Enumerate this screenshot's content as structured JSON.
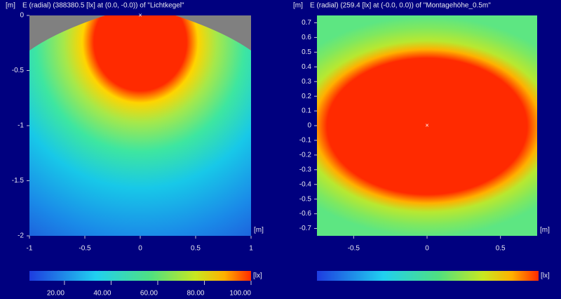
{
  "chart_data": [
    {
      "type": "heatmap",
      "title": "E (radial) (388380.5 [lx] at (0.0, -0.0)) of \"Lichtkegel\"",
      "y_unit": "[m]",
      "x_unit": "[m]",
      "xlim": [
        -1,
        1
      ],
      "xticks": [
        -1,
        -0.5,
        0,
        0.5,
        1
      ],
      "ylim": [
        -2,
        0
      ],
      "yticks": [
        0,
        -0.5,
        -1,
        -1.5,
        -2
      ],
      "colorbar": {
        "unit": "[lx]",
        "lim": [
          5,
          100
        ],
        "ticks": [
          {
            "value": 20,
            "label": "20.00"
          },
          {
            "value": 40,
            "label": "40.00"
          },
          {
            "value": 60,
            "label": "60.00"
          },
          {
            "value": 80,
            "label": "80.00"
          },
          {
            "value": 100,
            "label": "100.00"
          }
        ]
      }
    },
    {
      "type": "heatmap",
      "title": "E (radial) (259.4 [lx] at (-0.0, 0.0)) of \"Montagehöhe_0.5m\"",
      "y_unit": "[m]",
      "x_unit": "[m]",
      "xlim": [
        -0.75,
        0.75
      ],
      "xticks": [
        -0.5,
        0,
        0.5
      ],
      "ylim": [
        -0.75,
        0.75
      ],
      "yticks": [
        0.7,
        0.6,
        0.5,
        0.4,
        0.3,
        0.2,
        0.1,
        0,
        -0.1,
        -0.2,
        -0.3,
        -0.4,
        -0.5,
        -0.6,
        -0.7
      ],
      "colorbar": {
        "unit": "[lx]"
      }
    }
  ]
}
